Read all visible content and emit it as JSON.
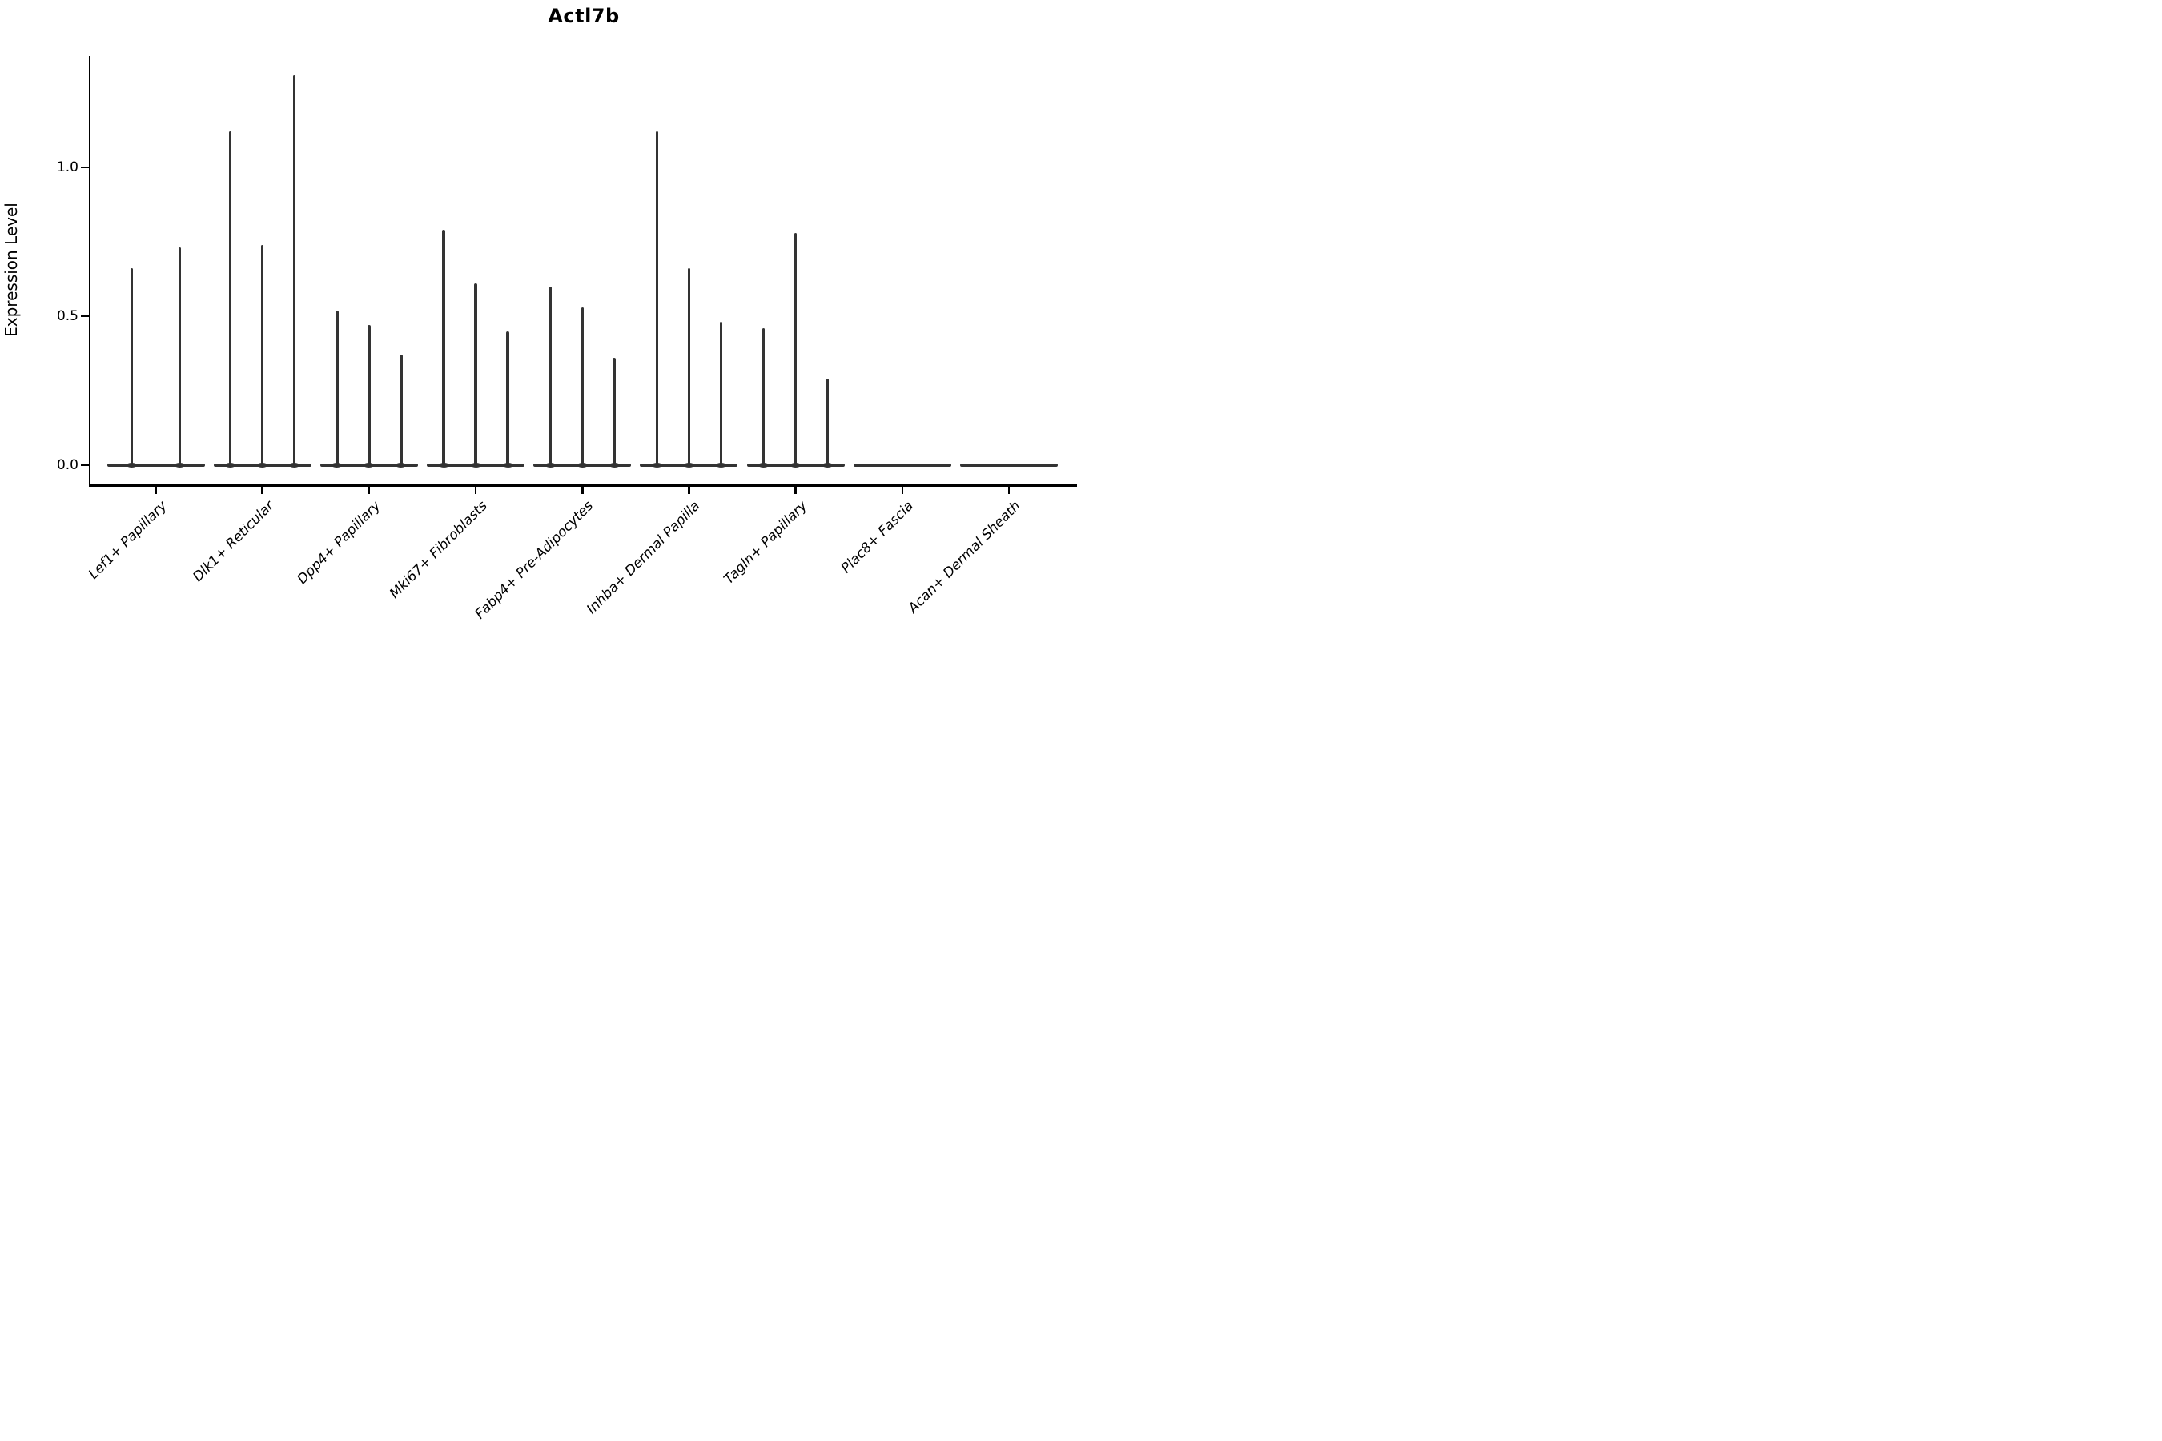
{
  "title": "Actl7b",
  "y_axis": {
    "label": "Expression Level",
    "tick_labels": [
      "0.0",
      "0.5",
      "1.0"
    ]
  },
  "x_axis": {
    "label": "",
    "tick_labels": [
      "Lef1+ Papillary",
      "Dlk1+ Reticular",
      "Dpp4+ Papillary",
      "Mki67+ Fibroblasts",
      "Fabp4+ Pre-Adipocytes",
      "Inhba+ Dermal Papilla",
      "Tagln+ Papillary",
      "Plac8+ Fascia",
      "Acan+ Dermal Sheath"
    ]
  },
  "chart_data": {
    "type": "violin",
    "title": "Actl7b",
    "xlabel": "",
    "ylabel": "Expression Level",
    "ylim": [
      -0.065,
      1.37
    ],
    "yticks": [
      0.0,
      0.5,
      1.0
    ],
    "grid": false,
    "legend_position": "none",
    "violin_color": "#333333",
    "axis_color": "#000000",
    "categories": [
      "Lef1+ Papillary",
      "Dlk1+ Reticular",
      "Dpp4+ Papillary",
      "Mki67+ Fibroblasts",
      "Fabp4+ Pre-Adipocytes",
      "Inhba+ Dermal Papilla",
      "Tagln+ Papillary",
      "Plac8+ Fascia",
      "Acan+ Dermal Sheath"
    ],
    "groups": [
      {
        "label": "Lef1+ Papillary",
        "violins": [
          {
            "offset": -0.225,
            "max": 0.66
          },
          {
            "offset": 0.225,
            "max": 0.73
          }
        ]
      },
      {
        "label": "Dlk1+ Reticular",
        "violins": [
          {
            "offset": -0.3,
            "max": 1.12
          },
          {
            "offset": 0.0,
            "max": 0.74
          },
          {
            "offset": 0.3,
            "max": 1.31
          }
        ]
      },
      {
        "label": "Dpp4+ Papillary",
        "violins": [
          {
            "offset": -0.3,
            "max": 0.52
          },
          {
            "offset": 0.0,
            "max": 0.47
          },
          {
            "offset": 0.3,
            "max": 0.37
          }
        ]
      },
      {
        "label": "Mki67+ Fibroblasts",
        "violins": [
          {
            "offset": -0.3,
            "max": 0.79
          },
          {
            "offset": 0.0,
            "max": 0.61
          },
          {
            "offset": 0.3,
            "max": 0.45
          }
        ]
      },
      {
        "label": "Fabp4+ Pre-Adipocytes",
        "violins": [
          {
            "offset": -0.3,
            "max": 0.6
          },
          {
            "offset": 0.0,
            "max": 0.53
          },
          {
            "offset": 0.3,
            "max": 0.36
          }
        ]
      },
      {
        "label": "Inhba+ Dermal Papilla",
        "violins": [
          {
            "offset": -0.3,
            "max": 1.12
          },
          {
            "offset": 0.0,
            "max": 0.66
          },
          {
            "offset": 0.3,
            "max": 0.48
          }
        ]
      },
      {
        "label": "Tagln+ Papillary",
        "violins": [
          {
            "offset": -0.3,
            "max": 0.46
          },
          {
            "offset": 0.0,
            "max": 0.78
          },
          {
            "offset": 0.3,
            "max": 0.29
          }
        ]
      },
      {
        "label": "Plac8+ Fascia",
        "violins": []
      },
      {
        "label": "Acan+ Dermal Sheath",
        "violins": []
      }
    ],
    "note": "All violins collapse to a flat band at 0 with a thin density spike reaching the listed max expression value."
  }
}
